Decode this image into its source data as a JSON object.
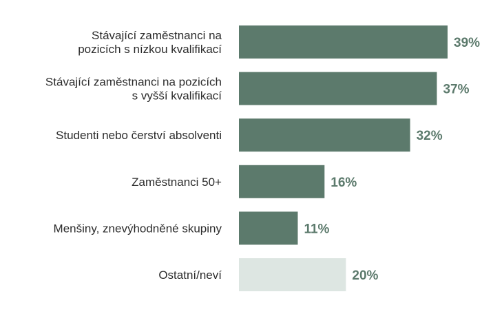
{
  "chart_data": {
    "type": "bar",
    "orientation": "horizontal",
    "categories": [
      [
        "Stávající zaměstnanci na",
        "pozicích s nízkou kvalifikací"
      ],
      [
        "Stávající zaměstnanci na pozicích",
        "s vyšší kvalifikací"
      ],
      [
        "Studenti nebo čerství absolventi"
      ],
      [
        "Zaměstnanci 50+"
      ],
      [
        "Menšiny, znevýhodněné skupiny"
      ],
      [
        "Ostatní/neví"
      ]
    ],
    "values": [
      39,
      37,
      32,
      16,
      11,
      20
    ],
    "value_labels": [
      "39%",
      "37%",
      "32%",
      "16%",
      "11%",
      "20%"
    ],
    "unit": "%",
    "xlim": [
      0,
      39
    ],
    "grid": false,
    "legend": "none",
    "colors": {
      "bar": "#5c7a6c",
      "bar_other": "#dde6e2",
      "value_text": "#5c7a6c",
      "category_text": "#2b2b2b"
    },
    "highlight_index": 5
  }
}
